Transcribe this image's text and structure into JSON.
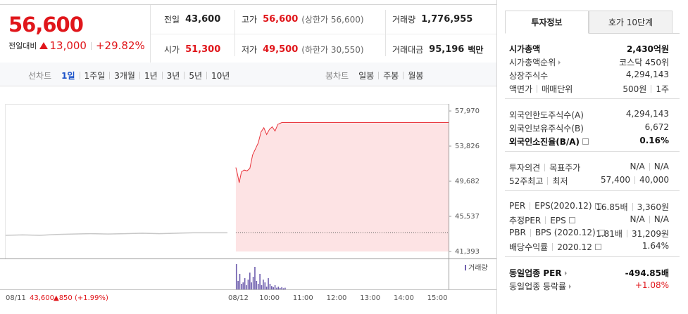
{
  "quote": {
    "price": "56,600",
    "change_label": "전일대비",
    "change": "13,000",
    "change_rate": "+29.82%"
  },
  "summary": [
    [
      {
        "label": "전일",
        "value": "43,600"
      },
      {
        "label": "고가",
        "value": "56,600",
        "note": "(상한가 56,600)",
        "color": "#e0161b"
      },
      {
        "label": "거래량",
        "value": "1,776,955"
      }
    ],
    [
      {
        "label": "시가",
        "value": "51,300",
        "color": "#e0161b"
      },
      {
        "label": "저가",
        "value": "49,500",
        "note": "(하한가 30,550)",
        "color": "#e0161b"
      },
      {
        "label": "거래대금",
        "value": "95,196",
        "note": "백만"
      }
    ]
  ],
  "tabs": {
    "line_label": "선차트",
    "line": [
      "1일",
      "1주일",
      "3개월",
      "1년",
      "3년",
      "5년",
      "10년"
    ],
    "active": 0,
    "candle_label": "봉차트",
    "candle": [
      "일봉",
      "주봉",
      "월봉"
    ]
  },
  "chart": {
    "ylim": [
      41393,
      57970
    ],
    "yticks": [
      {
        "value": 57970,
        "label": "57,970"
      },
      {
        "value": 53826,
        "label": "53,826"
      },
      {
        "value": 49682,
        "label": "49,682"
      },
      {
        "value": 45537,
        "label": "45,537"
      },
      {
        "value": 41393,
        "label": "41,393"
      }
    ],
    "prev_day": {
      "date": "08/11",
      "close": {
        "value": 43600,
        "label": "43,600"
      },
      "change": "▲850 (+1.99%)",
      "color": "#c8c8c8",
      "xlim": [
        0,
        390
      ],
      "x": [
        0,
        30,
        60,
        90,
        120,
        150,
        180,
        210,
        240,
        270,
        300,
        330,
        360,
        390
      ],
      "values": [
        43300,
        43350,
        43300,
        43400,
        43450,
        43500,
        43450,
        43500,
        43550,
        43500,
        43550,
        43600,
        43600,
        43600
      ]
    },
    "today": {
      "date": "08/12",
      "color": "#e8343b",
      "fill": "#fde3e4",
      "xlim": [
        -15,
        380
      ],
      "xticks": [
        {
          "value": 60,
          "label": "10:00"
        },
        {
          "value": 120,
          "label": "11:00"
        },
        {
          "value": 180,
          "label": "12:00"
        },
        {
          "value": 240,
          "label": "13:00"
        },
        {
          "value": 300,
          "label": "14:00"
        },
        {
          "value": 360,
          "label": "15:00"
        }
      ],
      "x": [
        0,
        3,
        6,
        10,
        15,
        20,
        25,
        30,
        35,
        40,
        45,
        50,
        55,
        60,
        65,
        70,
        75,
        82,
        380
      ],
      "values": [
        51300,
        50500,
        49500,
        50800,
        51000,
        50900,
        51200,
        52800,
        53500,
        54200,
        55500,
        56000,
        55200,
        55800,
        56100,
        55600,
        56400,
        56600,
        56600
      ]
    },
    "volume": {
      "label": "거래량",
      "color": "#6f5fae",
      "ylim": [
        0,
        100
      ],
      "x": [
        0,
        3,
        6,
        9,
        12,
        15,
        18,
        21,
        24,
        27,
        30,
        33,
        36,
        39,
        42,
        45,
        48,
        51,
        54,
        57,
        60,
        63,
        66,
        69,
        72,
        75,
        78,
        81,
        84,
        87
      ],
      "values": [
        90,
        30,
        55,
        20,
        25,
        40,
        15,
        35,
        60,
        25,
        45,
        80,
        30,
        20,
        55,
        15,
        35,
        25,
        10,
        40,
        20,
        12,
        8,
        15,
        6,
        10,
        5,
        8,
        4,
        6
      ]
    }
  },
  "info": {
    "tabs": [
      "투자정보",
      "호가 10단계"
    ],
    "active_tab": 0,
    "groups": [
      [
        {
          "label": [
            "시가총액"
          ],
          "value": [
            "2,430억원"
          ],
          "strong": true
        },
        {
          "label": [
            "시가총액순위"
          ],
          "arrow": true,
          "value": [
            "코스닥 450위"
          ]
        },
        {
          "label": [
            "상장주식수"
          ],
          "value": [
            "4,294,143"
          ]
        },
        {
          "label": [
            "액면가",
            "매매단위"
          ],
          "value": [
            "500원",
            "1주"
          ]
        }
      ],
      [
        {
          "label": [
            "외국인한도주식수(A)"
          ],
          "value": [
            "4,294,143"
          ]
        },
        {
          "label": [
            "외국인보유주식수(B)"
          ],
          "value": [
            "6,672"
          ]
        },
        {
          "label": [
            "외국인소진율(B/A)"
          ],
          "help": true,
          "value": [
            "0.16%"
          ],
          "strong": true
        }
      ],
      [
        {
          "label": [
            "투자의견",
            "목표주가"
          ],
          "value": [
            "N/A",
            "N/A"
          ]
        },
        {
          "label": [
            "52주최고",
            "최저"
          ],
          "value": [
            "57,400",
            "40,000"
          ]
        }
      ],
      [
        {
          "label": [
            "PER",
            "EPS(2020.12)"
          ],
          "help": true,
          "value": [
            "16.85배",
            "3,360원"
          ]
        },
        {
          "label": [
            "추정PER",
            "EPS"
          ],
          "help": true,
          "value": [
            "N/A",
            "N/A"
          ]
        },
        {
          "label": [
            "PBR",
            "BPS (2020.12)"
          ],
          "help": true,
          "value": [
            "1.81배",
            "31,209원"
          ]
        },
        {
          "label": [
            "배당수익률",
            "2020.12"
          ],
          "help": true,
          "value": [
            "1.64%"
          ]
        }
      ],
      [
        {
          "label": [
            "동일업종 PER"
          ],
          "arrow": true,
          "value": [
            "-494.85배"
          ],
          "strong": true
        },
        {
          "label": [
            "동일업종 등락률"
          ],
          "arrow": true,
          "value": [
            "+1.08%"
          ],
          "color": "#e0161b"
        }
      ]
    ]
  }
}
